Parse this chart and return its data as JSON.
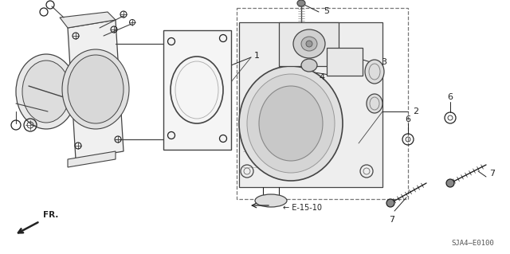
{
  "bg_color": "#ffffff",
  "ref_code": "SJA4-E0100",
  "sub_ref": "E-15-10",
  "lc": "#222222",
  "fig_w": 6.4,
  "fig_h": 3.19,
  "dpi": 100
}
